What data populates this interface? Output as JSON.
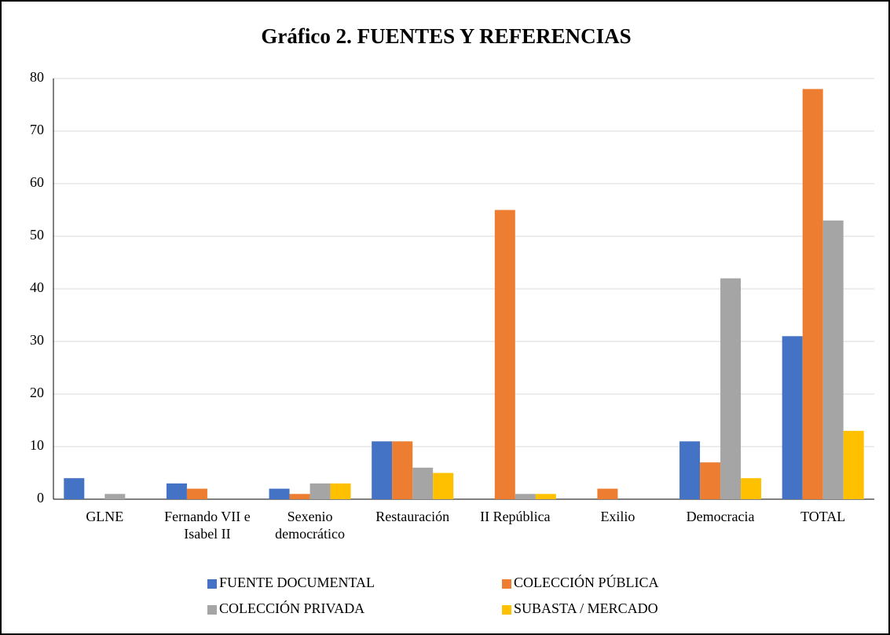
{
  "chart_data": {
    "type": "bar",
    "title": "Gráfico 2. FUENTES Y REFERENCIAS",
    "categories": [
      "GLNE",
      "Fernando VII e Isabel II",
      "Sexenio democrático",
      "Restauración",
      "II República",
      "Exilio",
      "Democracia",
      "TOTAL"
    ],
    "series": [
      {
        "name": "FUENTE DOCUMENTAL",
        "color": "#4472c4",
        "values": [
          4,
          3,
          2,
          11,
          0,
          0,
          11,
          31
        ]
      },
      {
        "name": "COLECCIÓN PÚBLICA",
        "color": "#ed7d31",
        "values": [
          0,
          2,
          1,
          11,
          55,
          2,
          7,
          78
        ]
      },
      {
        "name": "COLECCIÓN PRIVADA",
        "color": "#a5a5a5",
        "values": [
          1,
          0,
          3,
          6,
          1,
          0,
          42,
          53
        ]
      },
      {
        "name": "SUBASTA / MERCADO",
        "color": "#ffc000",
        "values": [
          0,
          0,
          3,
          5,
          1,
          0,
          4,
          13
        ]
      }
    ],
    "ylim": [
      0,
      80
    ],
    "yticks": [
      0,
      10,
      20,
      30,
      40,
      50,
      60,
      70,
      80
    ],
    "grid": true,
    "legend": "bottom"
  }
}
